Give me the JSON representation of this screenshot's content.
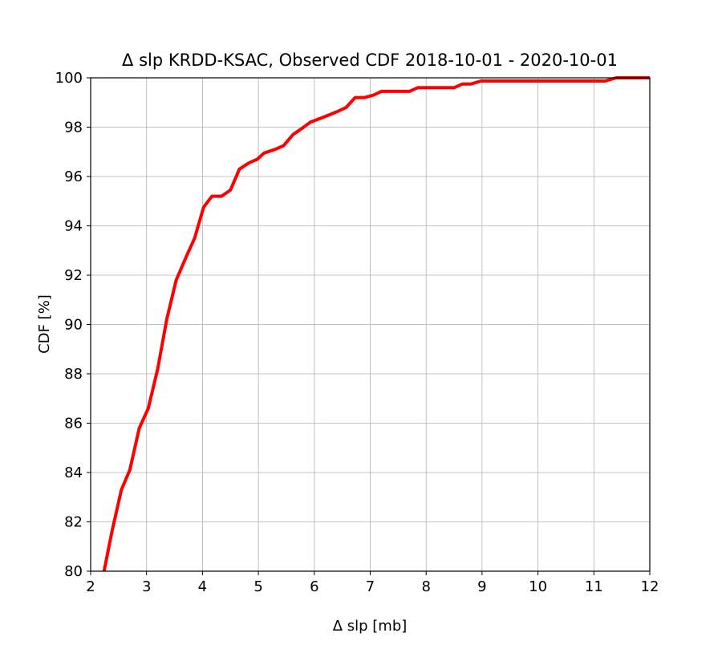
{
  "chart_data": {
    "type": "line",
    "title": "Δ slp KRDD-KSAC, Observed CDF 2018-10-01 - 2020-10-01",
    "xlabel": "Δ slp [mb]",
    "ylabel": "CDF [%]",
    "xlim": [
      2,
      12
    ],
    "ylim": [
      80,
      100
    ],
    "xticks": [
      2,
      3,
      4,
      5,
      6,
      7,
      8,
      9,
      10,
      11,
      12
    ],
    "yticks": [
      80,
      82,
      84,
      86,
      88,
      90,
      92,
      94,
      96,
      98,
      100
    ],
    "grid": true,
    "legend": "none",
    "series": [
      {
        "color": "#ff0000",
        "x": [
          2.24,
          2.38,
          2.55,
          2.7,
          2.87,
          3.03,
          3.2,
          3.36,
          3.53,
          3.7,
          3.86,
          4.02,
          4.17,
          4.34,
          4.5,
          4.66,
          4.83,
          4.98,
          5.1,
          5.3,
          5.45,
          5.62,
          5.78,
          5.93,
          6.1,
          6.27,
          6.43,
          6.57,
          6.73,
          6.9,
          7.06,
          7.2,
          7.4,
          7.55,
          7.7,
          7.85,
          8.0,
          8.2,
          8.5,
          8.65,
          8.8,
          8.98,
          9.2,
          9.5,
          9.9,
          10.3,
          10.7,
          11.2,
          11.4,
          11.8,
          12.0
        ],
        "y": [
          80.0,
          81.6,
          83.3,
          84.1,
          85.8,
          86.6,
          88.2,
          90.2,
          91.8,
          92.7,
          93.5,
          94.75,
          95.2,
          95.2,
          95.45,
          96.3,
          96.55,
          96.7,
          96.95,
          97.1,
          97.25,
          97.7,
          97.95,
          98.2,
          98.35,
          98.5,
          98.65,
          98.8,
          99.2,
          99.2,
          99.3,
          99.45,
          99.45,
          99.45,
          99.45,
          99.6,
          99.6,
          99.6,
          99.6,
          99.75,
          99.75,
          99.87,
          99.87,
          99.87,
          99.87,
          99.87,
          99.87,
          99.87,
          100.0,
          100.0,
          100.0
        ]
      }
    ]
  }
}
